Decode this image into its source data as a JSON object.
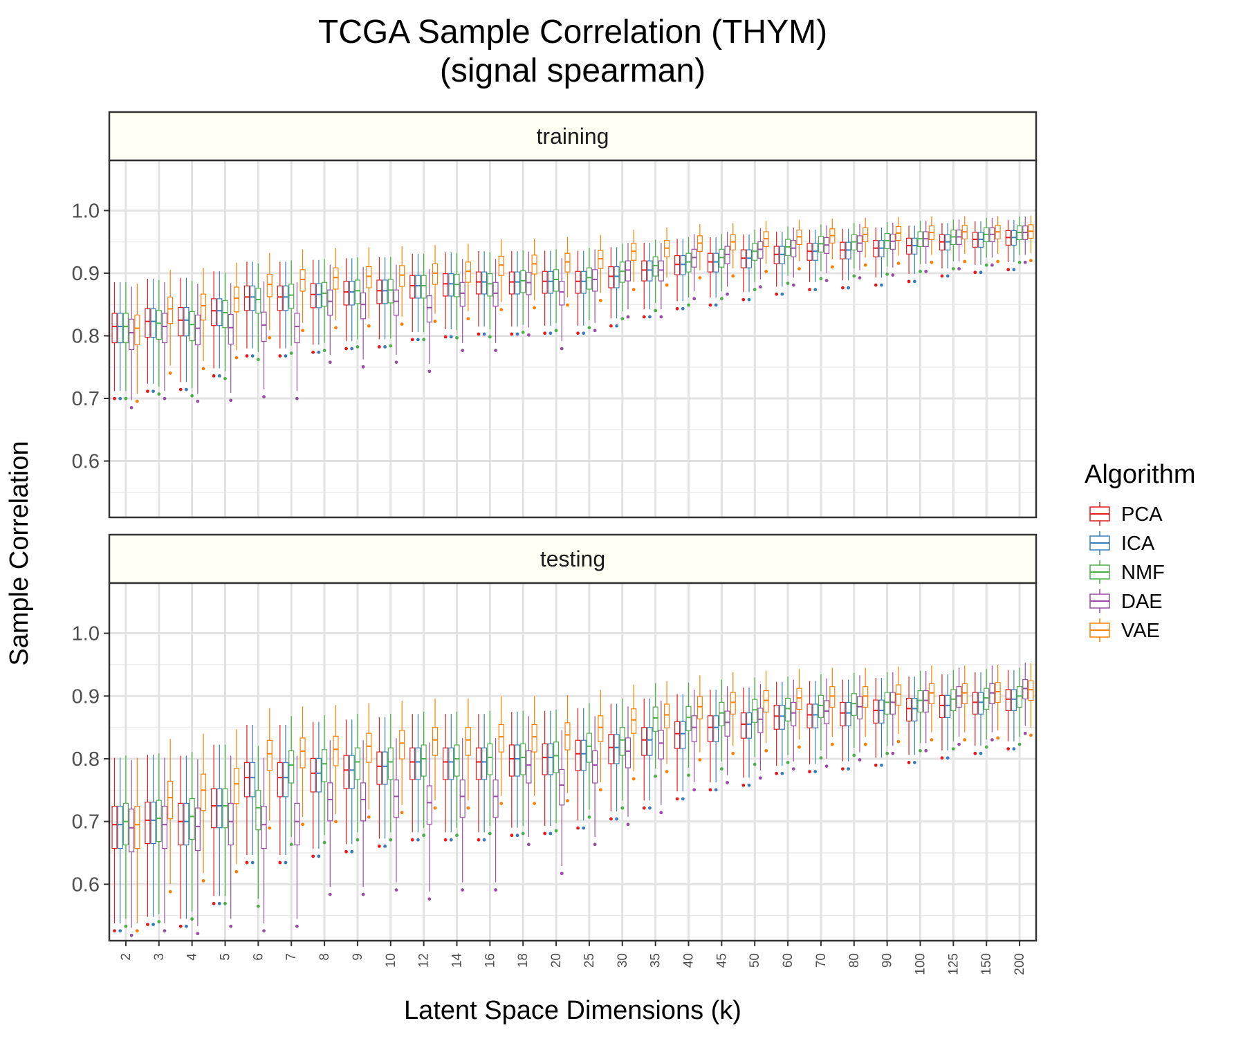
{
  "chart_data": {
    "type": "box",
    "title": "TCGA Sample Correlation (THYM)",
    "subtitle": "(signal spearman)",
    "xlabel": "Latent Space Dimensions (k)",
    "ylabel": "Sample Correlation",
    "legend": {
      "title": "Algorithm",
      "placement": "right",
      "entries": [
        "PCA",
        "ICA",
        "NMF",
        "DAE",
        "VAE"
      ]
    },
    "colors": {
      "PCA": "#E41A1C",
      "ICA": "#377EB8",
      "NMF": "#4DAF4A",
      "DAE": "#984EA3",
      "VAE": "#FF7F00"
    },
    "categories": [
      "2",
      "3",
      "4",
      "5",
      "6",
      "7",
      "8",
      "9",
      "10",
      "12",
      "14",
      "16",
      "18",
      "20",
      "25",
      "30",
      "35",
      "40",
      "45",
      "50",
      "60",
      "70",
      "80",
      "90",
      "100",
      "125",
      "150",
      "200"
    ],
    "ylim": [
      0.51,
      1.08
    ],
    "yticks": [
      0.6,
      0.7,
      0.8,
      0.9,
      1.0
    ],
    "ytick_labels": [
      "0.6",
      "0.7",
      "0.8",
      "0.9",
      "1.0"
    ],
    "grid": true,
    "panels": [
      {
        "label": "training",
        "medians": {
          "PCA": [
            0.815,
            0.823,
            0.825,
            0.84,
            0.862,
            0.862,
            0.866,
            0.87,
            0.872,
            0.88,
            0.883,
            0.886,
            0.886,
            0.887,
            0.887,
            0.895,
            0.905,
            0.914,
            0.918,
            0.924,
            0.93,
            0.935,
            0.937,
            0.94,
            0.944,
            0.95,
            0.954,
            0.957
          ],
          "ICA": [
            0.815,
            0.823,
            0.825,
            0.84,
            0.862,
            0.862,
            0.866,
            0.87,
            0.872,
            0.88,
            0.883,
            0.886,
            0.886,
            0.887,
            0.887,
            0.895,
            0.905,
            0.914,
            0.918,
            0.924,
            0.93,
            0.935,
            0.937,
            0.94,
            0.944,
            0.95,
            0.954,
            0.957
          ],
          "NMF": [
            0.815,
            0.82,
            0.818,
            0.837,
            0.858,
            0.865,
            0.868,
            0.872,
            0.873,
            0.88,
            0.882,
            0.883,
            0.888,
            0.89,
            0.893,
            0.903,
            0.912,
            0.918,
            0.925,
            0.935,
            0.942,
            0.947,
            0.95,
            0.952,
            0.955,
            0.958,
            0.962,
            0.965
          ],
          "DAE": [
            0.805,
            0.815,
            0.812,
            0.813,
            0.817,
            0.815,
            0.855,
            0.85,
            0.855,
            0.845,
            0.868,
            0.868,
            0.885,
            0.87,
            0.89,
            0.905,
            0.905,
            0.925,
            0.93,
            0.938,
            0.94,
            0.945,
            0.948,
            0.951,
            0.955,
            0.958,
            0.962,
            0.965
          ],
          "VAE": [
            0.812,
            0.843,
            0.848,
            0.86,
            0.882,
            0.89,
            0.893,
            0.895,
            0.897,
            0.9,
            0.903,
            0.913,
            0.915,
            0.918,
            0.923,
            0.935,
            0.94,
            0.948,
            0.95,
            0.955,
            0.958,
            0.96,
            0.962,
            0.964,
            0.965,
            0.966,
            0.966,
            0.967
          ]
        }
      },
      {
        "label": "testing",
        "medians": {
          "PCA": [
            0.695,
            0.702,
            0.7,
            0.725,
            0.77,
            0.77,
            0.777,
            0.782,
            0.788,
            0.795,
            0.795,
            0.795,
            0.8,
            0.802,
            0.808,
            0.818,
            0.83,
            0.84,
            0.85,
            0.855,
            0.868,
            0.87,
            0.873,
            0.877,
            0.88,
            0.885,
            0.89,
            0.895
          ],
          "ICA": [
            0.695,
            0.702,
            0.7,
            0.725,
            0.77,
            0.77,
            0.777,
            0.782,
            0.788,
            0.795,
            0.795,
            0.795,
            0.8,
            0.802,
            0.808,
            0.818,
            0.83,
            0.84,
            0.85,
            0.855,
            0.868,
            0.87,
            0.873,
            0.877,
            0.88,
            0.885,
            0.89,
            0.895
          ],
          "NMF": [
            0.7,
            0.705,
            0.708,
            0.725,
            0.722,
            0.79,
            0.792,
            0.795,
            0.795,
            0.8,
            0.8,
            0.802,
            0.802,
            0.805,
            0.82,
            0.83,
            0.865,
            0.866,
            0.873,
            0.878,
            0.88,
            0.885,
            0.888,
            0.89,
            0.893,
            0.895,
            0.897,
            0.9
          ],
          "DAE": [
            0.69,
            0.695,
            0.692,
            0.7,
            0.695,
            0.7,
            0.735,
            0.735,
            0.74,
            0.73,
            0.74,
            0.74,
            0.79,
            0.758,
            0.79,
            0.812,
            0.825,
            0.85,
            0.858,
            0.863,
            0.873,
            0.876,
            0.883,
            0.89,
            0.893,
            0.9,
            0.905,
            0.912
          ],
          "VAE": [
            0.695,
            0.738,
            0.75,
            0.76,
            0.808,
            0.812,
            0.815,
            0.82,
            0.825,
            0.83,
            0.83,
            0.835,
            0.835,
            0.838,
            0.85,
            0.862,
            0.87,
            0.883,
            0.89,
            0.893,
            0.897,
            0.9,
            0.9,
            0.903,
            0.905,
            0.905,
            0.907,
            0.91
          ]
        }
      }
    ]
  }
}
